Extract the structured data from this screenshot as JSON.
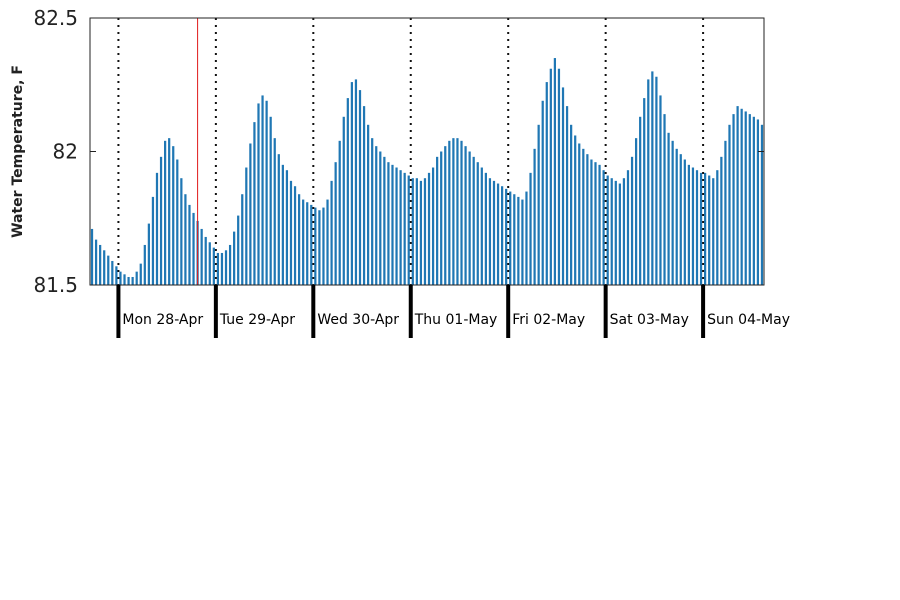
{
  "chart_data": {
    "type": "bar",
    "ylabel": "Water Temperature, F",
    "ylim": [
      81.5,
      82.5
    ],
    "y_ticks": [
      "81.5",
      "82",
      "82.5"
    ],
    "y_tick_values": [
      81.5,
      82.0,
      82.5
    ],
    "color": "#1f77b4",
    "current_time_marker_color": "#e01b1b",
    "current_time_index": 26,
    "first_midnight_index": 7,
    "samples_per_day": 24,
    "sample_interval_hours": 1,
    "grid": false,
    "days": [
      "Mon 28-Apr",
      "Tue 29-Apr",
      "Wed 30-Apr",
      "Thu 01-May",
      "Fri 02-May",
      "Sat 03-May",
      "Sun 04-May"
    ],
    "values": [
      81.71,
      81.67,
      81.65,
      81.63,
      81.61,
      81.59,
      81.57,
      81.55,
      81.54,
      81.53,
      81.53,
      81.55,
      81.58,
      81.65,
      81.73,
      81.83,
      81.92,
      81.98,
      82.04,
      82.05,
      82.02,
      81.97,
      81.9,
      81.84,
      81.8,
      81.77,
      81.74,
      81.71,
      81.68,
      81.66,
      81.64,
      81.62,
      81.62,
      81.63,
      81.65,
      81.7,
      81.76,
      81.84,
      81.94,
      82.03,
      82.11,
      82.18,
      82.21,
      82.19,
      82.13,
      82.05,
      81.99,
      81.95,
      81.93,
      81.89,
      81.87,
      81.84,
      81.82,
      81.81,
      81.8,
      81.79,
      81.78,
      81.79,
      81.82,
      81.89,
      81.96,
      82.04,
      82.13,
      82.2,
      82.26,
      82.27,
      82.23,
      82.17,
      82.1,
      82.05,
      82.02,
      82.0,
      81.98,
      81.96,
      81.95,
      81.94,
      81.93,
      81.92,
      81.91,
      81.9,
      81.9,
      81.89,
      81.9,
      81.92,
      81.94,
      81.98,
      82.0,
      82.02,
      82.04,
      82.05,
      82.05,
      82.04,
      82.02,
      82.0,
      81.98,
      81.96,
      81.94,
      81.92,
      81.9,
      81.89,
      81.88,
      81.87,
      81.86,
      81.85,
      81.84,
      81.83,
      81.82,
      81.85,
      81.92,
      82.01,
      82.1,
      82.19,
      82.26,
      82.31,
      82.35,
      82.31,
      82.24,
      82.17,
      82.1,
      82.06,
      82.03,
      82.01,
      81.99,
      81.97,
      81.96,
      81.95,
      81.93,
      81.91,
      81.9,
      81.89,
      81.88,
      81.9,
      81.93,
      81.98,
      82.05,
      82.13,
      82.2,
      82.27,
      82.3,
      82.28,
      82.21,
      82.14,
      82.07,
      82.04,
      82.01,
      81.99,
      81.97,
      81.95,
      81.94,
      81.93,
      81.92,
      81.92,
      81.91,
      81.9,
      81.93,
      81.98,
      82.04,
      82.1,
      82.14,
      82.17,
      82.16,
      82.15,
      82.14,
      82.13,
      82.12,
      82.1
    ]
  }
}
